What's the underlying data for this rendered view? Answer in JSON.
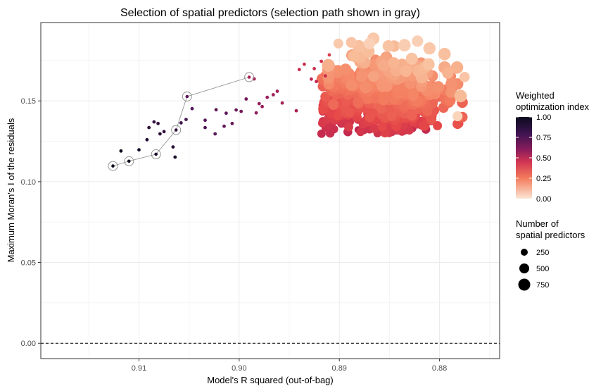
{
  "chart_data": {
    "type": "scatter",
    "title": "Selection of spatial predictors (selection path shown in gray)",
    "xlabel": "Model's R squared (out-of-bag)",
    "ylabel": "Maximum Moran's I of the residuals",
    "x_axis_reversed": true,
    "xlim": [
      0.9198,
      0.874
    ],
    "ylim": [
      -0.0095,
      0.1985
    ],
    "x_ticks": [
      "0.91",
      "0.90",
      "0.89",
      "0.88"
    ],
    "x_tick_values": [
      0.91,
      0.9,
      0.89,
      0.88
    ],
    "y_ticks": [
      "0.00",
      "0.05",
      "0.10",
      "0.15"
    ],
    "y_tick_values": [
      0.0,
      0.05,
      0.1,
      0.15
    ],
    "grid": true,
    "reference_line": {
      "y": 0.0,
      "style": "dashed",
      "color": "#000000"
    },
    "selection_path": {
      "color": "#8c8c8c",
      "points": [
        {
          "x": 0.9126,
          "y": 0.1097
        },
        {
          "x": 0.911,
          "y": 0.1127
        },
        {
          "x": 0.9083,
          "y": 0.117
        },
        {
          "x": 0.9063,
          "y": 0.132
        },
        {
          "x": 0.9052,
          "y": 0.1527
        },
        {
          "x": 0.899,
          "y": 0.1647
        }
      ]
    },
    "points_small": [
      {
        "x": 0.9118,
        "y": 0.119,
        "c": 1.0
      },
      {
        "x": 0.91,
        "y": 0.1197,
        "c": 0.98
      },
      {
        "x": 0.9092,
        "y": 0.126,
        "c": 0.95
      },
      {
        "x": 0.909,
        "y": 0.1335,
        "c": 0.92
      },
      {
        "x": 0.9085,
        "y": 0.137,
        "c": 0.9
      },
      {
        "x": 0.9081,
        "y": 0.136,
        "c": 0.91
      },
      {
        "x": 0.9079,
        "y": 0.1296,
        "c": 0.93
      },
      {
        "x": 0.9075,
        "y": 0.131,
        "c": 0.92
      },
      {
        "x": 0.9066,
        "y": 0.1215,
        "c": 0.94
      },
      {
        "x": 0.9064,
        "y": 0.1152,
        "c": 0.96
      },
      {
        "x": 0.9058,
        "y": 0.1364,
        "c": 0.89
      },
      {
        "x": 0.9053,
        "y": 0.1385,
        "c": 0.87
      },
      {
        "x": 0.9047,
        "y": 0.1452,
        "c": 0.85
      },
      {
        "x": 0.9034,
        "y": 0.1335,
        "c": 0.86
      },
      {
        "x": 0.9034,
        "y": 0.138,
        "c": 0.84
      },
      {
        "x": 0.9024,
        "y": 0.1296,
        "c": 0.83
      },
      {
        "x": 0.9023,
        "y": 0.1445,
        "c": 0.82
      },
      {
        "x": 0.9015,
        "y": 0.1343,
        "c": 0.8
      },
      {
        "x": 0.9013,
        "y": 0.1424,
        "c": 0.81
      },
      {
        "x": 0.9007,
        "y": 0.136,
        "c": 0.79
      },
      {
        "x": 0.9003,
        "y": 0.1444,
        "c": 0.78
      },
      {
        "x": 0.8998,
        "y": 0.1435,
        "c": 0.76
      },
      {
        "x": 0.8993,
        "y": 0.1512,
        "c": 0.75
      },
      {
        "x": 0.8985,
        "y": 0.1636,
        "c": 0.62
      },
      {
        "x": 0.8983,
        "y": 0.1426,
        "c": 0.7
      },
      {
        "x": 0.898,
        "y": 0.1483,
        "c": 0.68
      },
      {
        "x": 0.8977,
        "y": 0.1465,
        "c": 0.67
      },
      {
        "x": 0.8972,
        "y": 0.1522,
        "c": 0.66
      },
      {
        "x": 0.8966,
        "y": 0.1538,
        "c": 0.64
      },
      {
        "x": 0.8962,
        "y": 0.156,
        "c": 0.63
      },
      {
        "x": 0.8957,
        "y": 0.1487,
        "c": 0.62
      },
      {
        "x": 0.8943,
        "y": 0.1439,
        "c": 0.6
      },
      {
        "x": 0.894,
        "y": 0.1694,
        "c": 0.52
      },
      {
        "x": 0.8935,
        "y": 0.1727,
        "c": 0.5
      },
      {
        "x": 0.8928,
        "y": 0.1635,
        "c": 0.55
      },
      {
        "x": 0.8925,
        "y": 0.17,
        "c": 0.5
      },
      {
        "x": 0.8923,
        "y": 0.162,
        "c": 0.54
      },
      {
        "x": 0.8918,
        "y": 0.1745,
        "c": 0.48
      },
      {
        "x": 0.8914,
        "y": 0.1655,
        "c": 0.52
      },
      {
        "x": 0.891,
        "y": 0.1785,
        "c": 0.45
      }
    ],
    "cloud": {
      "x_range": [
        0.8795,
        0.892
      ],
      "y_range": [
        0.129,
        0.189
      ],
      "color_range": [
        0.0,
        0.55
      ],
      "point_count": 700,
      "note_color_gradient": "dark red at lower-left edge to light peach at upper-right"
    },
    "color_scale": {
      "name": "Weighted optimization index",
      "min": 0.0,
      "max": 1.0,
      "stops": [
        "#fbe6d6",
        "#f6a47c",
        "#ea4c48",
        "#a81f5a",
        "#5e1a62",
        "#0c0a1e"
      ]
    },
    "size_scale": {
      "name": "Number of spatial predictors",
      "values": [
        250,
        500,
        750
      ]
    }
  },
  "legend": {
    "color_title_line1": "Weighted",
    "color_title_line2": "optimization index",
    "color_ticks": [
      "1.00",
      "0.75",
      "0.50",
      "0.25",
      "0.00"
    ],
    "size_title_line1": "Number of",
    "size_title_line2": "spatial predictors",
    "size_labels": [
      "250",
      "500",
      "750"
    ]
  }
}
